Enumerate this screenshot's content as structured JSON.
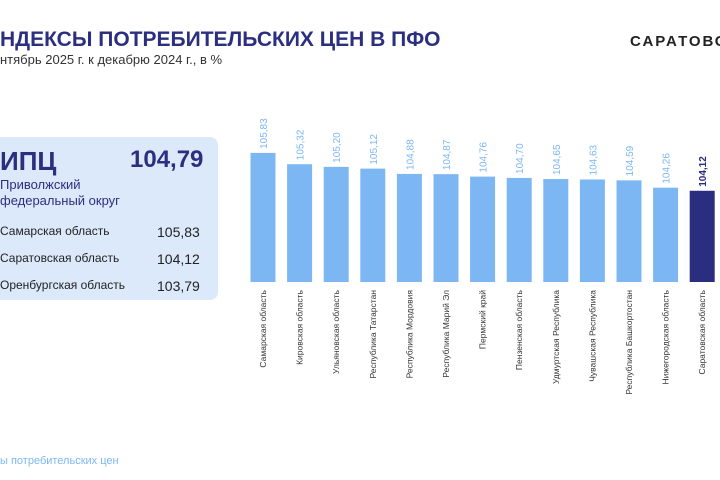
{
  "header": {
    "title": "НДЕКСЫ ПОТРЕБИТЕЛЬСКИХ ЦЕН В ПФО",
    "subtitle": "нтябрь 2025 г. к декабрю 2024 г., в %",
    "logo": "САРАТОВС"
  },
  "panel": {
    "label": "ИПЦ",
    "value": "104,79",
    "region": [
      "Приволжский",
      "федеральный округ"
    ],
    "rows": [
      {
        "name": "Самарская область",
        "value": "105,83"
      },
      {
        "name": "Саратовская область",
        "value": "104,12"
      },
      {
        "name": "Оренбургская область",
        "value": "103,79"
      }
    ]
  },
  "chart_data": {
    "type": "bar",
    "categories": [
      "Самарская область",
      "Кировская область",
      "Ульяновская область",
      "Республика Татарстан",
      "Республика Мордовия",
      "Республика Марий Эл",
      "Пермский край",
      "Пензенская область",
      "Удмуртская Республика",
      "Чувашская Республика",
      "Республика Башкортостан",
      "Нижегородская область",
      "Саратовская область"
    ],
    "values": [
      105.83,
      105.32,
      105.2,
      105.12,
      104.88,
      104.87,
      104.76,
      104.7,
      104.65,
      104.63,
      104.59,
      104.26,
      104.12
    ],
    "value_labels": [
      "105,83",
      "105,32",
      "105,20",
      "105,12",
      "104,88",
      "104,87",
      "104,76",
      "104,70",
      "104,65",
      "104,63",
      "104,59",
      "104,26",
      "104,12"
    ],
    "colors": [
      "#7cb7f4",
      "#7cb7f4",
      "#7cb7f4",
      "#7cb7f4",
      "#7cb7f4",
      "#7cb7f4",
      "#7cb7f4",
      "#7cb7f4",
      "#7cb7f4",
      "#7cb7f4",
      "#7cb7f4",
      "#7cb7f4",
      "#2b2d7e"
    ],
    "ylim": [
      100,
      107
    ]
  },
  "footer": "ы потребительских цен"
}
